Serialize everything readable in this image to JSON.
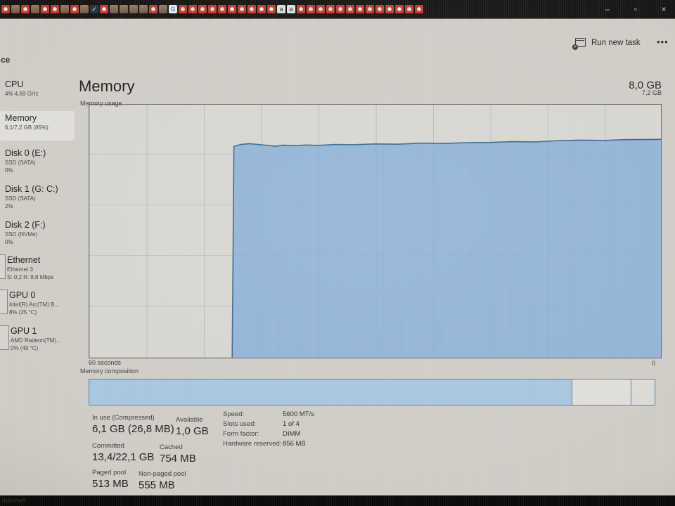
{
  "tab_strip": {
    "icons": [
      "red",
      "face",
      "red",
      "face",
      "red",
      "red",
      "face",
      "red",
      "face",
      "dark",
      "red",
      "face",
      "face",
      "face",
      "face",
      "red",
      "face",
      "google",
      "red",
      "red",
      "red",
      "red",
      "red",
      "red",
      "red",
      "red",
      "red",
      "red",
      "a",
      "a",
      "red",
      "red",
      "red",
      "red",
      "red",
      "red",
      "red",
      "red",
      "red",
      "red",
      "red",
      "red",
      "red"
    ],
    "dark_glyph": "✓",
    "google_glyph": "G",
    "a_glyph": "a"
  },
  "window": {
    "controls": {
      "minimize": "–",
      "maximize": "▫",
      "close": "×"
    }
  },
  "header": {
    "page_title_fragment": "ce",
    "run_new_task": "Run new task",
    "more": "•••"
  },
  "sidebar": {
    "items": [
      {
        "name": "CPU",
        "line1": "4% 4,69 GHz",
        "line2": "",
        "selected": false
      },
      {
        "name": "Memory",
        "line1": "6,1/7,2 GB (85%)",
        "line2": "",
        "selected": true
      },
      {
        "name": "Disk 0 (E:)",
        "line1": "SSD (SATA)",
        "line2": "0%",
        "selected": false
      },
      {
        "name": "Disk 1 (G: C:)",
        "line1": "SSD (SATA)",
        "line2": "2%",
        "selected": false
      },
      {
        "name": "Disk 2 (F:)",
        "line1": "SSD (NVMe)",
        "line2": "0%",
        "selected": false
      },
      {
        "name": "Ethernet",
        "line1": "Ethernet 3",
        "line2": "S: 0,2 R: 8,8 Mbps",
        "selected": false
      },
      {
        "name": "GPU 0",
        "line1": "Intel(R) Arc(TM) B...",
        "line2": "8% (25 °C)",
        "selected": false
      },
      {
        "name": "GPU 1",
        "line1": "AMD Radeon(TM)...",
        "line2": "0% (49 °C)",
        "selected": false
      }
    ]
  },
  "main": {
    "title": "Memory",
    "total_memory": "8,0 GB",
    "chart_label": "Memory usage",
    "chart_max_label": "7,2 GB",
    "x_left_label": "60 seconds",
    "x_right_label": "0",
    "composition_label": "Memory composition"
  },
  "chart_data": {
    "type": "area",
    "title": "Memory usage",
    "x_axis": {
      "left_label": "60 seconds",
      "right_label": "0"
    },
    "y_axis": {
      "max_label": "7,2 GB",
      "unit": "percent of 7,2 GB"
    },
    "grid": true,
    "fill_color": "#7fa9d6",
    "line_color": "#33658f",
    "points_pct": [
      [
        25.0,
        0
      ],
      [
        25.3,
        83.5
      ],
      [
        26.5,
        84.3
      ],
      [
        28.0,
        84.6
      ],
      [
        30.0,
        84.2
      ],
      [
        32.5,
        83.6
      ],
      [
        34.0,
        84.0
      ],
      [
        36.0,
        83.8
      ],
      [
        38.0,
        84.1
      ],
      [
        40.0,
        83.9
      ],
      [
        43.0,
        84.3
      ],
      [
        46.0,
        84.2
      ],
      [
        50.0,
        84.5
      ],
      [
        54.0,
        84.4
      ],
      [
        58.0,
        84.8
      ],
      [
        62.0,
        84.7
      ],
      [
        66.0,
        85.0
      ],
      [
        70.0,
        85.1
      ],
      [
        74.0,
        85.4
      ],
      [
        78.0,
        85.3
      ],
      [
        82.0,
        85.8
      ],
      [
        86.0,
        86.0
      ],
      [
        90.0,
        85.9
      ],
      [
        94.0,
        86.2
      ],
      [
        100.0,
        86.3
      ]
    ]
  },
  "composition": {
    "segments": [
      {
        "name": "in-use",
        "pct": 85.5
      },
      {
        "name": "standby",
        "pct": 10.4
      },
      {
        "name": "free",
        "pct": 4.1
      }
    ]
  },
  "stats": {
    "pairs": [
      {
        "label": "In use (Compressed)",
        "value": "6,1 GB (26,8 MB)"
      },
      {
        "label": "Available",
        "value": "1,0 GB"
      },
      {
        "label": "Committed",
        "value": "13,4/22,1 GB"
      },
      {
        "label": "Cached",
        "value": "754 MB"
      },
      {
        "label": "Paged pool",
        "value": "513 MB"
      },
      {
        "label": "Non-paged pool",
        "value": "555 MB"
      }
    ],
    "details": [
      {
        "label": "Speed:",
        "value": "5600 MT/s"
      },
      {
        "label": "Slots used:",
        "value": "1 of 4"
      },
      {
        "label": "Form factor:",
        "value": "DIMM"
      },
      {
        "label": "Hardware reserved:",
        "value": "856 MB"
      }
    ]
  },
  "taskbar": {
    "text": "ockerwit"
  },
  "colors": {
    "chart_fill": "#7fa9d6",
    "chart_line": "#33658f",
    "composition_fill": "#a7c5e0",
    "composition_border": "#5d7ea0",
    "window_bg": "#cfccc6",
    "strip_bg": "#151412"
  }
}
